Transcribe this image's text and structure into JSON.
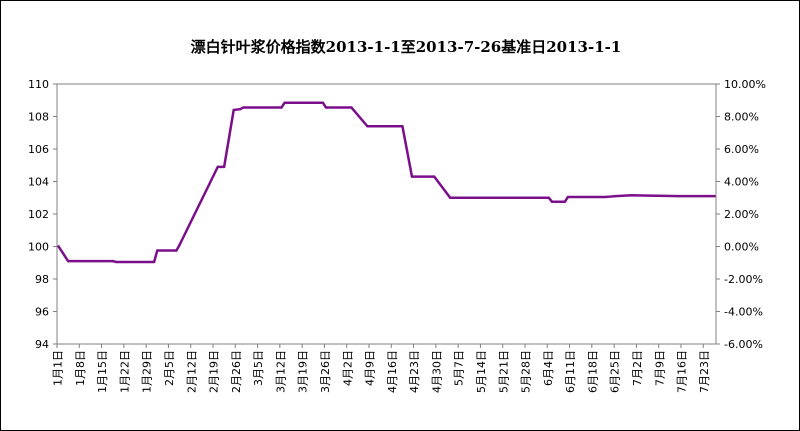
{
  "chart_data": {
    "type": "line",
    "title": "漂白针叶浆价格指数2013-1-1至2013-7-26基准日2013-1-1",
    "xlabel": "",
    "ylabel": "",
    "ylim": [
      94,
      110
    ],
    "y_ticks": [
      "94",
      "96",
      "98",
      "100",
      "102",
      "104",
      "106",
      "108",
      "110"
    ],
    "y2lim": [
      -6,
      10
    ],
    "y2_ticks": [
      "-6.00%",
      "-4.00%",
      "-2.00%",
      "0.00%",
      "2.00%",
      "4.00%",
      "6.00%",
      "8.00%",
      "10.00%"
    ],
    "x_tick_labels": [
      "1月1日",
      "1月8日",
      "1月15日",
      "1月22日",
      "1月29日",
      "2月5日",
      "2月12日",
      "2月19日",
      "2月26日",
      "3月5日",
      "3月12日",
      "3月19日",
      "3月26日",
      "4月2日",
      "4月9日",
      "4月16日",
      "4月23日",
      "4月30日",
      "5月7日",
      "5月14日",
      "5月21日",
      "5月28日",
      "6月4日",
      "6月11日",
      "6月18日",
      "6月25日",
      "7月2日",
      "7月9日",
      "7月16日",
      "7月23日"
    ],
    "x_start": "2013-01-01",
    "x_end": "2013-07-26",
    "grid": false,
    "line_color": "#7B0E8A",
    "series": [
      {
        "x": [
          "2013-01-01",
          "2013-01-04",
          "2013-01-18",
          "2013-01-19",
          "2013-01-31",
          "2013-02-01",
          "2013-02-07",
          "2013-02-08",
          "2013-02-20",
          "2013-02-22",
          "2013-02-25",
          "2013-02-27",
          "2013-02-28",
          "2013-03-12",
          "2013-03-13",
          "2013-03-25",
          "2013-03-26",
          "2013-04-03",
          "2013-04-08",
          "2013-04-19",
          "2013-04-22",
          "2013-04-29",
          "2013-05-04",
          "2013-06-04",
          "2013-06-05",
          "2013-06-09",
          "2013-06-10",
          "2013-06-22",
          "2013-06-25",
          "2013-06-30",
          "2013-07-15",
          "2013-07-26"
        ],
        "values": [
          100.0,
          99.1,
          99.1,
          99.05,
          99.05,
          99.75,
          99.75,
          100.1,
          104.9,
          104.9,
          108.4,
          108.45,
          108.55,
          108.55,
          108.85,
          108.85,
          108.55,
          108.55,
          107.4,
          107.4,
          104.3,
          104.3,
          103.0,
          103.0,
          102.75,
          102.75,
          103.05,
          103.05,
          103.1,
          103.15,
          103.1,
          103.1
        ]
      }
    ]
  }
}
